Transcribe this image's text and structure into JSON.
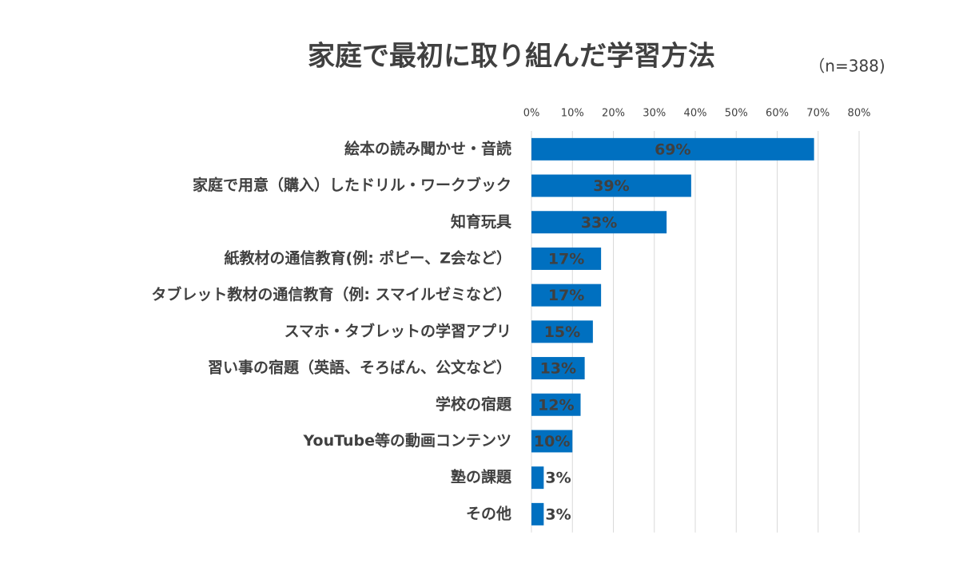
{
  "chart_data": {
    "type": "bar",
    "orientation": "horizontal",
    "title": "家庭で最初に取り組んだ学習方法",
    "subtitle": "（n=388)",
    "categories": [
      "絵本の読み聞かせ・音読",
      "家庭で用意（購入）したドリル・ワークブック",
      "知育玩具",
      "紙教材の通信教育(例: ポピー、Z会など）",
      "タブレット教材の通信教育（例: スマイルゼミなど）",
      "スマホ・タブレットの学習アプリ",
      "習い事の宿題（英語、そろばん、公文など）",
      "学校の宿題",
      "YouTube等の動画コンテンツ",
      "塾の課題",
      "その他"
    ],
    "values": [
      69,
      39,
      33,
      17,
      17,
      15,
      13,
      12,
      10,
      3,
      3
    ],
    "value_labels": [
      "69%",
      "39%",
      "33%",
      "17%",
      "17%",
      "15%",
      "13%",
      "12%",
      "10%",
      "3%",
      "3%"
    ],
    "color": "#0070c0",
    "xlim": [
      0,
      80
    ],
    "xticks": [
      {
        "value": 0,
        "label": "0%"
      },
      {
        "value": 10,
        "label": "10%"
      },
      {
        "value": 20,
        "label": "20%"
      },
      {
        "value": 30,
        "label": "30%"
      },
      {
        "value": 40,
        "label": "40%"
      },
      {
        "value": 50,
        "label": "50%"
      },
      {
        "value": 60,
        "label": "60%"
      },
      {
        "value": 70,
        "label": "70%"
      },
      {
        "value": 80,
        "label": "80%"
      }
    ],
    "grid": true
  }
}
